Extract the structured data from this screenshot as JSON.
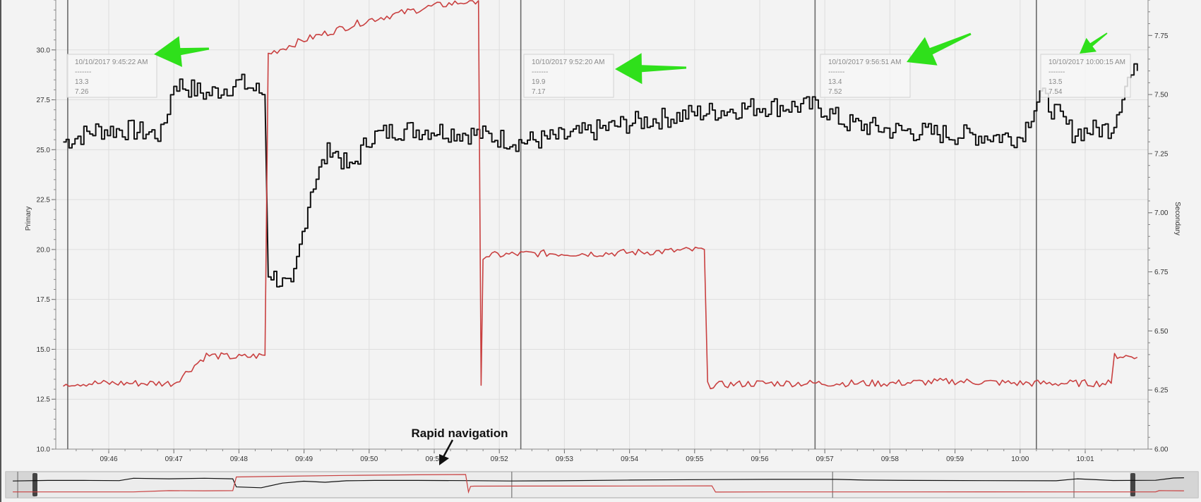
{
  "chart_data": {
    "type": "line",
    "y_primary": {
      "label": "Primary",
      "range": [
        10.0,
        32.5
      ],
      "ticks": [
        "10.0",
        "12.5",
        "15.0",
        "17.5",
        "20.0",
        "22.5",
        "25.0",
        "27.5",
        "30.0"
      ]
    },
    "y_secondary": {
      "label": "Secondary",
      "range": [
        6.0,
        7.9
      ],
      "ticks": [
        "6.00",
        "6.25",
        "6.50",
        "6.75",
        "7.00",
        "7.25",
        "7.50",
        "7.75"
      ]
    },
    "x_ticks": [
      "09:46",
      "09:47",
      "09:48",
      "09:49",
      "09:50",
      "09:51",
      "09:52",
      "09:53",
      "09:54",
      "09:55",
      "09:56",
      "09:57",
      "09:58",
      "09:59",
      "10:00",
      "10:01"
    ],
    "grid": true,
    "series": [
      {
        "color": "#111111",
        "axis": "secondary",
        "x": [
          "09:45.3",
          "09:45.8",
          "09:46.3",
          "09:46.8",
          "09:47.0",
          "09:47.5",
          "09:48.0",
          "09:48.4",
          "09:48.45",
          "09:48.8",
          "09:49.1",
          "09:49.4",
          "09:49.7",
          "09:50.0",
          "09:50.4",
          "09:51.0",
          "09:51.7",
          "09:52.3",
          "09:53.0",
          "09:54.0",
          "09:55.0",
          "09:56.0",
          "09:56.9",
          "09:57.3",
          "09:58.0",
          "09:59.0",
          "10:00.0",
          "10:00.3",
          "10:00.8",
          "10:01.4",
          "10:01.65",
          "10:01.8"
        ],
        "y": [
          7.3,
          7.35,
          7.35,
          7.33,
          7.55,
          7.5,
          7.55,
          7.5,
          6.75,
          6.67,
          7.1,
          7.28,
          7.18,
          7.32,
          7.35,
          7.35,
          7.33,
          7.3,
          7.32,
          7.38,
          7.42,
          7.45,
          7.45,
          7.38,
          7.35,
          7.33,
          7.32,
          7.5,
          7.34,
          7.36,
          7.57,
          7.6
        ]
      },
      {
        "color": "#c94040",
        "axis": "primary",
        "x": [
          "09:45.3",
          "09:46.5",
          "09:47.0",
          "09:47.5",
          "09:48.0",
          "09:48.4",
          "09:48.45",
          "09:49.0",
          "09:50.0",
          "09:51.0",
          "09:51.68",
          "09:51.72",
          "09:51.75",
          "09:51.8",
          "09:52.5",
          "09:53.5",
          "09:54.5",
          "09:55.15",
          "09:55.2",
          "09:56.0",
          "09:57.0",
          "09:58.0",
          "09:59.0",
          "10:00.0",
          "10:01.4",
          "10:01.45",
          "10:01.8"
        ],
        "y": [
          13.3,
          13.3,
          13.3,
          14.7,
          14.6,
          14.7,
          29.8,
          30.5,
          31.5,
          32.2,
          32.5,
          13.2,
          19.5,
          19.7,
          19.8,
          19.8,
          19.9,
          20.0,
          13.2,
          13.3,
          13.3,
          13.3,
          13.4,
          13.3,
          13.3,
          14.7,
          14.6
        ]
      }
    ],
    "tooltips": [
      {
        "time": "10/10/2017 9:45:22 AM",
        "sep": "-------",
        "v1": "13.3",
        "v2": "7.26"
      },
      {
        "time": "10/10/2017 9:52:20 AM",
        "sep": "-------",
        "v1": "19.9",
        "v2": "7.17"
      },
      {
        "time": "10/10/2017 9:56:51 AM",
        "sep": "-------",
        "v1": "13.4",
        "v2": "7.52"
      },
      {
        "time": "10/10/2017 10:00:15 AM",
        "sep": "-------",
        "v1": "13.5",
        "v2": "7.54"
      }
    ],
    "annotation": "Rapid navigation"
  },
  "colors": {
    "black_series": "#111111",
    "red_series": "#c94040",
    "arrow_green": "#2fe01b",
    "background": "#f3f3f3",
    "grid": "#dddddd"
  }
}
